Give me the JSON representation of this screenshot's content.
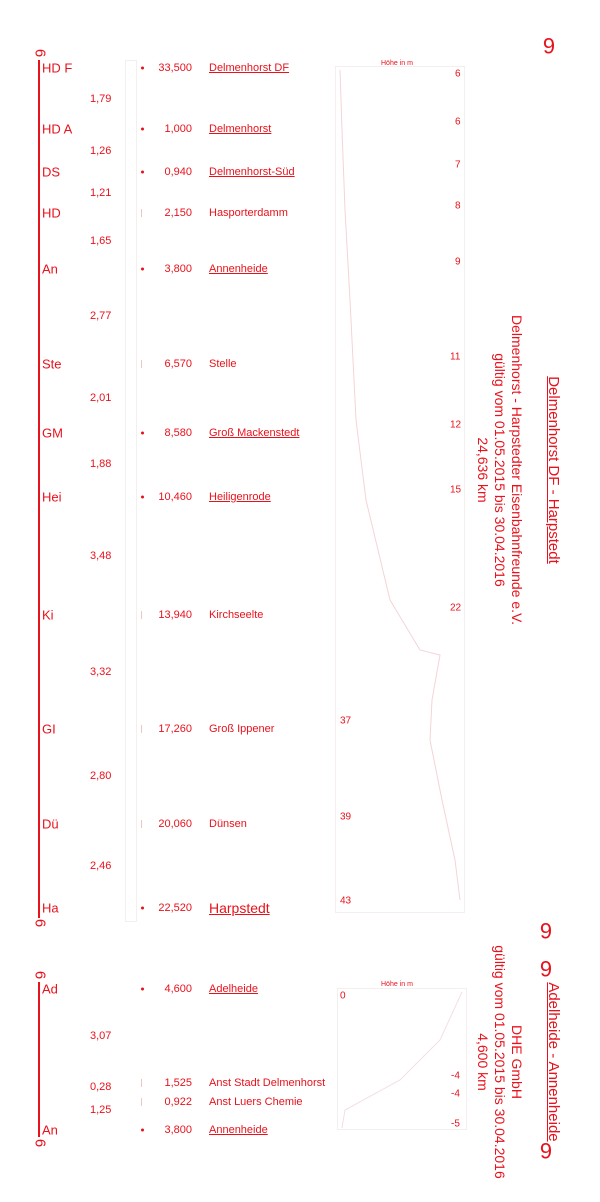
{
  "route1": {
    "title": "Delmenhorst DF - Harpstedt",
    "operator": "Delmenhorst - Harpstedter Eisenbahnfreunde e.V.",
    "validity": "gültig vom 01.05.2015 bis 30.04.2016",
    "length": "24,636 km",
    "elevation_label": "Höhe in m",
    "marker": "6",
    "stations": [
      {
        "abbr": "HD  F",
        "km": "33,500",
        "name": "Delmenhorst DF",
        "elev": "6",
        "underlined": true
      },
      {
        "abbr": "HD A",
        "km": "1,000",
        "name": "Delmenhorst",
        "elev": "6",
        "underlined": true
      },
      {
        "abbr": "DS",
        "km": "0,940",
        "name": "Delmenhorst-Süd",
        "elev": "7",
        "underlined": true
      },
      {
        "abbr": "HD",
        "km": "2,150",
        "name": "Hasporterdamm",
        "elev": "8",
        "underlined": false
      },
      {
        "abbr": "An",
        "km": "3,800",
        "name": "Annenheide",
        "elev": "9",
        "underlined": true
      },
      {
        "abbr": "Ste",
        "km": "6,570",
        "name": "Stelle",
        "elev": "11",
        "underlined": false
      },
      {
        "abbr": "GM",
        "km": "8,580",
        "name": "Groß Mackenstedt",
        "elev": "12",
        "underlined": true
      },
      {
        "abbr": "Hei",
        "km": "10,460",
        "name": "Heiligenrode",
        "elev": "15",
        "underlined": true
      },
      {
        "abbr": "Ki",
        "km": "13,940",
        "name": "Kirchseelte",
        "elev": "22",
        "underlined": false
      },
      {
        "abbr": "GI",
        "km": "17,260",
        "name": "Groß Ippener",
        "elev": "37",
        "underlined": false
      },
      {
        "abbr": "Dü",
        "km": "20,060",
        "name": "Dünsen",
        "elev": "39",
        "underlined": false
      },
      {
        "abbr": "Ha",
        "km": "22,520",
        "name": "Harpstedt",
        "elev": "43",
        "underlined": true
      }
    ],
    "distances": [
      "1,79",
      "1,26",
      "1,21",
      "1,65",
      "2,77",
      "2,01",
      "1,88",
      "3,48",
      "3,32",
      "2,80",
      "2,46"
    ]
  },
  "route2": {
    "title": "Adelheide - Annenheide",
    "operator": "DHE GmbH",
    "validity": "gültig vom 01.05.2015 bis 30.04.2016",
    "length": "4,600 km",
    "elevation_label": "Höhe in m",
    "marker": "6",
    "stations": [
      {
        "abbr": "Ad",
        "km": "4,600",
        "name": "Adelheide",
        "elev": "0",
        "underlined": true
      },
      {
        "abbr": "",
        "km": "1,525",
        "name": "Anst Stadt Delmenhorst",
        "elev": "-4",
        "underlined": false
      },
      {
        "abbr": "",
        "km": "0,922",
        "name": "Anst Luers Chemie",
        "elev": "-4",
        "underlined": false
      },
      {
        "abbr": "An",
        "km": "3,800",
        "name": "Annenheide",
        "elev": "-5",
        "underlined": true
      }
    ],
    "distances": [
      "3,07",
      "0,28",
      "1,25"
    ]
  }
}
